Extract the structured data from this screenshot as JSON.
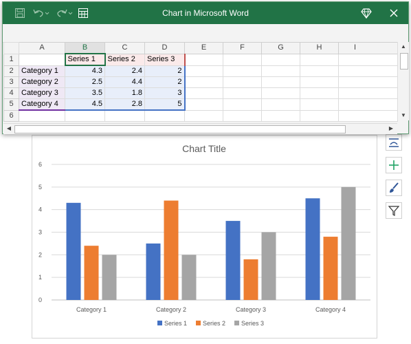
{
  "window": {
    "title": "Chart in Microsoft Word",
    "icons": [
      "save-icon",
      "undo-icon",
      "redo-icon",
      "edit-data-icon",
      "diamond-icon",
      "close-icon"
    ],
    "accent": "#217346"
  },
  "sheet": {
    "columns": [
      "A",
      "B",
      "C",
      "D",
      "E",
      "F",
      "G",
      "H",
      "I"
    ],
    "rows": [
      "1",
      "2",
      "3",
      "4",
      "5",
      "6"
    ],
    "header_row": [
      "",
      "Series 1",
      "Series 2",
      "Series 3"
    ],
    "data_rows": [
      [
        "Category 1",
        "4.3",
        "2.4",
        "2"
      ],
      [
        "Category 2",
        "2.5",
        "4.4",
        "2"
      ],
      [
        "Category 3",
        "3.5",
        "1.8",
        "3"
      ],
      [
        "Category 4",
        "4.5",
        "2.8",
        "5"
      ]
    ]
  },
  "side_tools": [
    "chart-elements-layout-icon",
    "add-element-icon",
    "brush-style-icon",
    "filter-icon"
  ],
  "chart_data": {
    "type": "bar",
    "title": "Chart Title",
    "categories": [
      "Category 1",
      "Category 2",
      "Category 3",
      "Category 4"
    ],
    "series": [
      {
        "name": "Series 1",
        "values": [
          4.3,
          2.5,
          3.5,
          4.5
        ],
        "color": "#4472c4"
      },
      {
        "name": "Series 2",
        "values": [
          2.4,
          4.4,
          1.8,
          2.8
        ],
        "color": "#ed7d31"
      },
      {
        "name": "Series 3",
        "values": [
          2,
          2,
          3,
          5
        ],
        "color": "#a5a5a5"
      }
    ],
    "ylim": [
      0,
      6
    ],
    "yticks": [
      0,
      1,
      2,
      3,
      4,
      5,
      6
    ],
    "grid": true,
    "legend": "bottom"
  }
}
